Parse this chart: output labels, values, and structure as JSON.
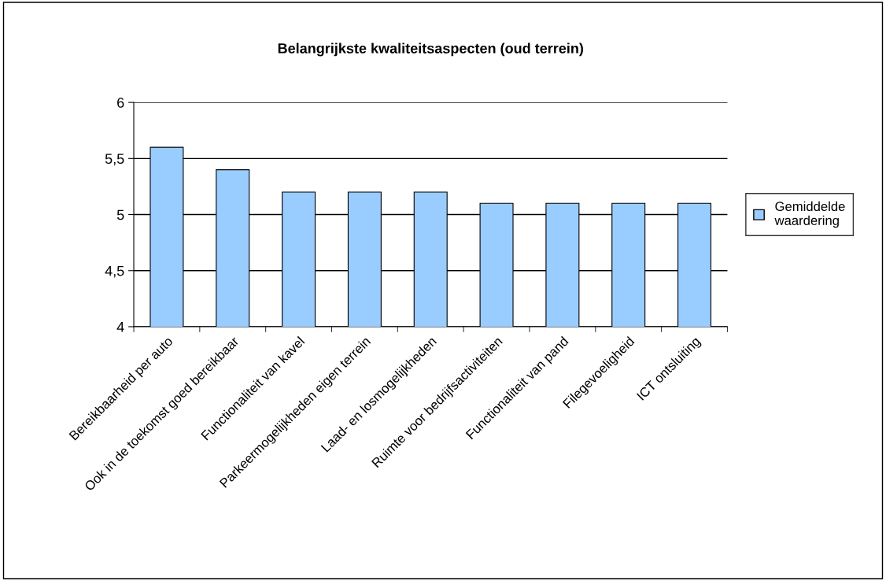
{
  "chart_data": {
    "type": "bar",
    "title": "Belangrijkste kwaliteitsaspecten (oud terrein)",
    "categories": [
      "Bereikbaarheid per auto",
      "Ook in de toekomst goed bereikbaar",
      "Functionaliteit van kavel",
      "Parkeermogelijkheden eigen terrein",
      "Laad- en losmogelijkheden",
      "Ruimte voor bedrijfsactiviteiten",
      "Functionaliteit van pand",
      "Filegevoeligheid",
      "ICT ontsluiting"
    ],
    "series": [
      {
        "name": "Gemiddelde waardering",
        "color": "#99ccff",
        "values": [
          5.6,
          5.4,
          5.2,
          5.2,
          5.2,
          5.1,
          5.1,
          5.1,
          5.1
        ]
      }
    ],
    "ylim": [
      4,
      6
    ],
    "yticks": [
      4,
      {
        "value": 4.5,
        "label": "4,5"
      },
      5,
      {
        "value": 5.5,
        "label": "5,5"
      },
      6
    ],
    "grid": "y",
    "legend": "right"
  }
}
